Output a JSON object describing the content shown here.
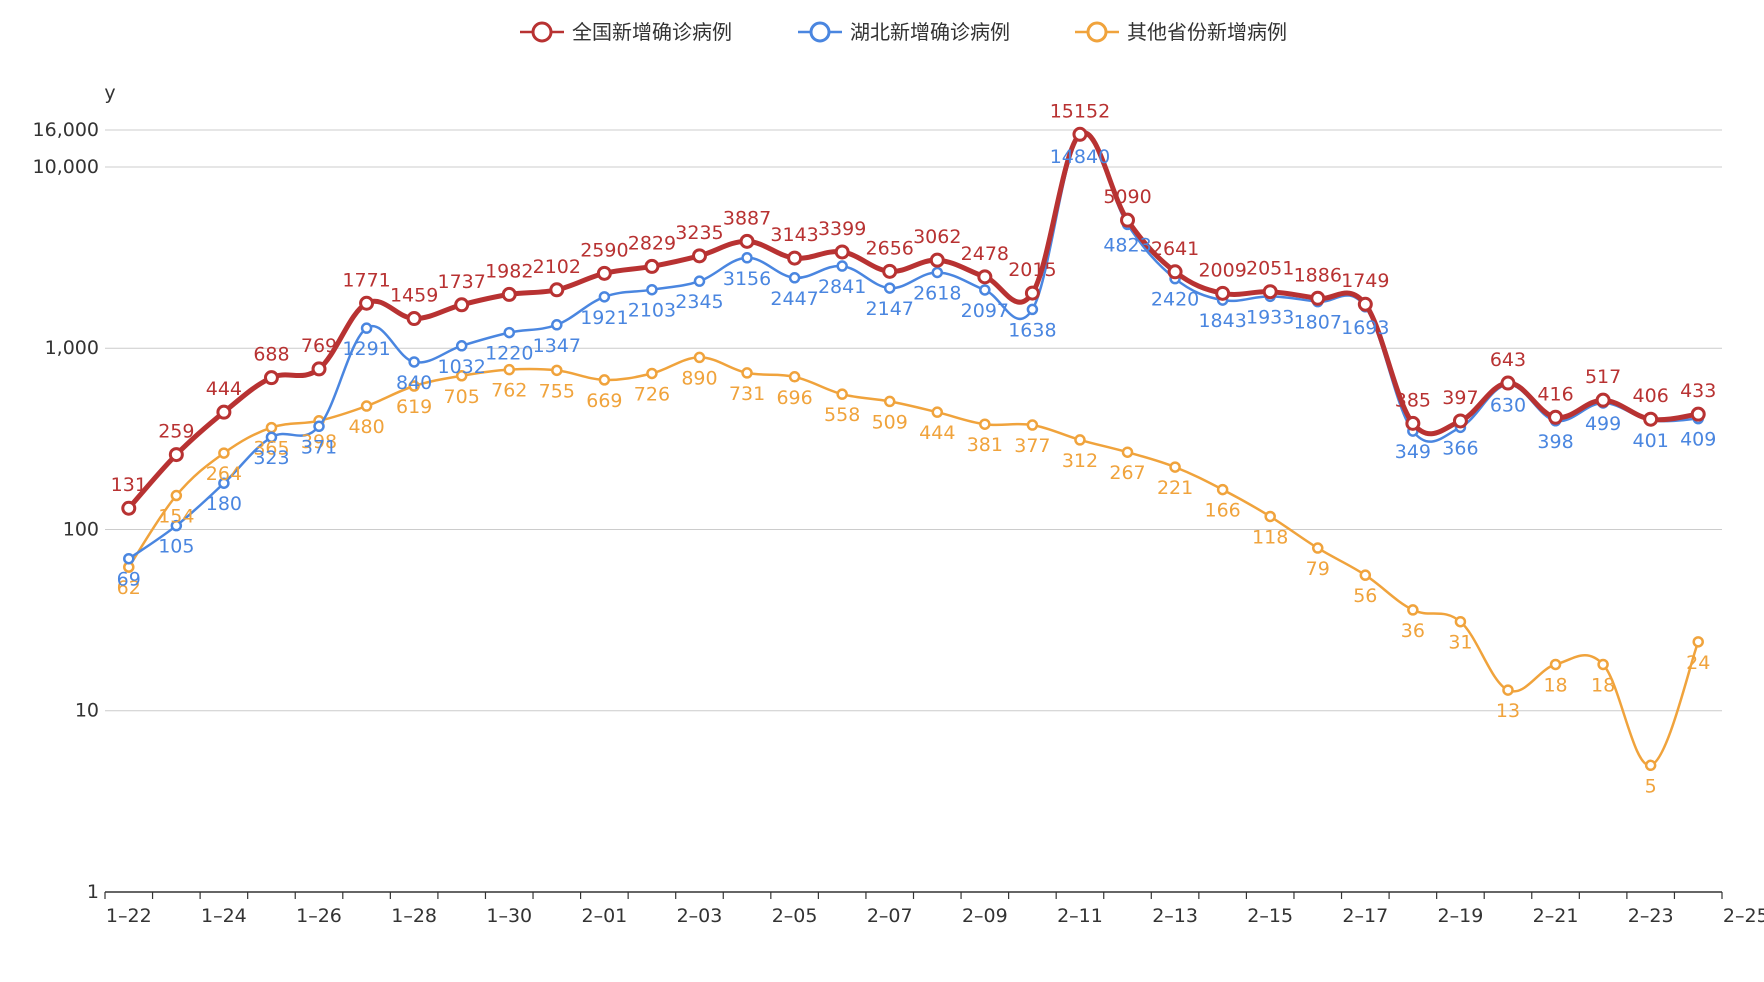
{
  "chart_data": {
    "type": "line",
    "title": "",
    "ylabel": "y",
    "xlabel": "",
    "y_scale": "log",
    "ylim": [
      1,
      16000
    ],
    "y_ticks": [
      {
        "value": 1,
        "label": "1"
      },
      {
        "value": 10,
        "label": "10"
      },
      {
        "value": 100,
        "label": "100"
      },
      {
        "value": 1000,
        "label": "1,000"
      },
      {
        "value": 10000,
        "label": "10,000"
      },
      {
        "value": 16000,
        "label": "16,000"
      }
    ],
    "x_tick_labels": [
      "1–22",
      "1–24",
      "1–26",
      "1–28",
      "1–30",
      "2–01",
      "2–03",
      "2–05",
      "2–07",
      "2–09",
      "2–11",
      "2–13",
      "2–15",
      "2–17",
      "2–19",
      "2–21",
      "2–23",
      "2–25"
    ],
    "categories": [
      "1-22",
      "1-23",
      "1-24",
      "1-25",
      "1-26",
      "1-27",
      "1-28",
      "1-29",
      "1-30",
      "1-31",
      "2-01",
      "2-02",
      "2-03",
      "2-04",
      "2-05",
      "2-06",
      "2-07",
      "2-08",
      "2-09",
      "2-10",
      "2-11",
      "2-12",
      "2-13",
      "2-14",
      "2-15",
      "2-16",
      "2-17",
      "2-18",
      "2-19",
      "2-20",
      "2-21",
      "2-22",
      "2-23",
      "2-24"
    ],
    "grid": true,
    "legend_position": "top-center",
    "series": [
      {
        "name": "全国新增确诊病例",
        "color": "#b83232",
        "values": [
          131,
          259,
          444,
          688,
          769,
          1771,
          1459,
          1737,
          1982,
          2102,
          2590,
          2829,
          3235,
          3887,
          3143,
          3399,
          2656,
          3062,
          2478,
          2015,
          15152,
          5090,
          2641,
          2009,
          2051,
          1886,
          1749,
          385,
          397,
          643,
          416,
          517,
          406,
          433
        ]
      },
      {
        "name": "湖北新增确诊病例",
        "color": "#4a86e0",
        "values": [
          69,
          105,
          180,
          323,
          371,
          1291,
          840,
          1032,
          1220,
          1347,
          1921,
          2103,
          2345,
          3156,
          2447,
          2841,
          2147,
          2618,
          2097,
          1638,
          14840,
          4823,
          2420,
          1843,
          1933,
          1807,
          1693,
          349,
          366,
          630,
          398,
          499,
          401,
          409
        ]
      },
      {
        "name": "其他省份新增病例",
        "color": "#f0a33c",
        "values": [
          62,
          154,
          264,
          365,
          398,
          480,
          619,
          705,
          762,
          755,
          669,
          726,
          890,
          731,
          696,
          558,
          509,
          444,
          381,
          377,
          312,
          267,
          221,
          166,
          118,
          79,
          56,
          36,
          31,
          13,
          18,
          18,
          5,
          24
        ]
      }
    ]
  }
}
